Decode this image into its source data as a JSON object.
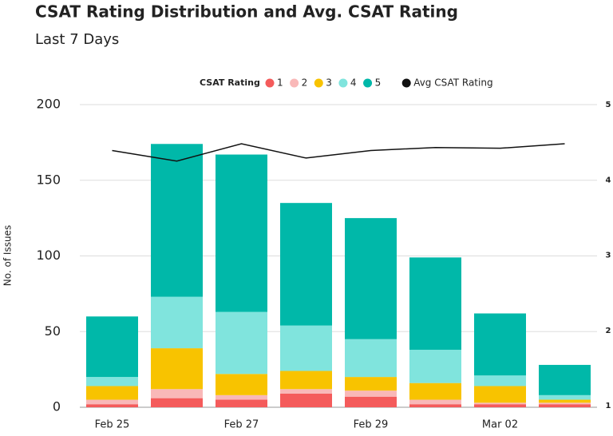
{
  "chart_data": {
    "type": "stacked_bar_line",
    "title": "CSAT Rating Distribution and Avg. CSAT Rating",
    "subtitle": "Last 7 Days",
    "y_label": "No. of Issues",
    "legend_title": "CSAT Rating",
    "categories": [
      "Feb 25",
      null,
      "Feb 27",
      null,
      "Feb 29",
      null,
      "Mar 02",
      null
    ],
    "series": [
      {
        "name": "1",
        "color": "#f45b5b",
        "values": [
          2,
          6,
          5,
          9,
          7,
          2,
          2,
          2
        ]
      },
      {
        "name": "2",
        "color": "#f9b8b8",
        "values": [
          3,
          6,
          3,
          3,
          4,
          3,
          1,
          1
        ]
      },
      {
        "name": "3",
        "color": "#f8c300",
        "values": [
          9,
          27,
          14,
          12,
          9,
          11,
          11,
          2
        ]
      },
      {
        "name": "4",
        "color": "#80e4dd",
        "values": [
          6,
          34,
          41,
          30,
          25,
          22,
          7,
          3
        ]
      },
      {
        "name": "5",
        "color": "#00b8a9",
        "values": [
          40,
          101,
          104,
          81,
          80,
          61,
          41,
          20
        ]
      },
      {
        "name": "Avg CSAT Rating",
        "color": "#111111",
        "axis": "y2",
        "values": [
          4.39,
          4.25,
          4.48,
          4.29,
          4.39,
          4.43,
          4.42,
          4.48
        ]
      }
    ],
    "ylim": [
      0,
      200
    ],
    "yticks": [
      0,
      50,
      100,
      150,
      200
    ],
    "y2lim": [
      1,
      5
    ],
    "y2ticks": [
      1,
      2,
      3,
      4,
      5
    ],
    "grid": true
  }
}
